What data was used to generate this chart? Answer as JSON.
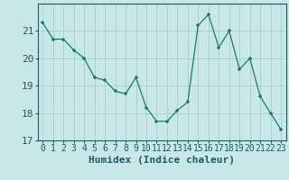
{
  "x": [
    0,
    1,
    2,
    3,
    4,
    5,
    6,
    7,
    8,
    9,
    10,
    11,
    12,
    13,
    14,
    15,
    16,
    17,
    18,
    19,
    20,
    21,
    22,
    23
  ],
  "y": [
    21.3,
    20.7,
    20.7,
    20.3,
    20.0,
    19.3,
    19.2,
    18.8,
    18.7,
    19.3,
    18.2,
    17.7,
    17.7,
    18.1,
    18.4,
    21.2,
    21.6,
    20.4,
    21.0,
    19.6,
    20.0,
    18.6,
    18.0,
    17.4
  ],
  "line_color": "#1a7a6e",
  "marker": "+",
  "marker_color": "#1a7a6e",
  "bg_color": "#c8e8e8",
  "grid_color": "#b0d0d0",
  "xlabel": "Humidex (Indice chaleur)",
  "ylim": [
    17,
    22
  ],
  "xlim": [
    -0.5,
    23.5
  ],
  "yticks": [
    17,
    18,
    19,
    20,
    21
  ],
  "xticks": [
    0,
    1,
    2,
    3,
    4,
    5,
    6,
    7,
    8,
    9,
    10,
    11,
    12,
    13,
    14,
    15,
    16,
    17,
    18,
    19,
    20,
    21,
    22,
    23
  ],
  "font_color": "#1a5c5c",
  "tick_fontsize": 7,
  "xlabel_fontsize": 8
}
